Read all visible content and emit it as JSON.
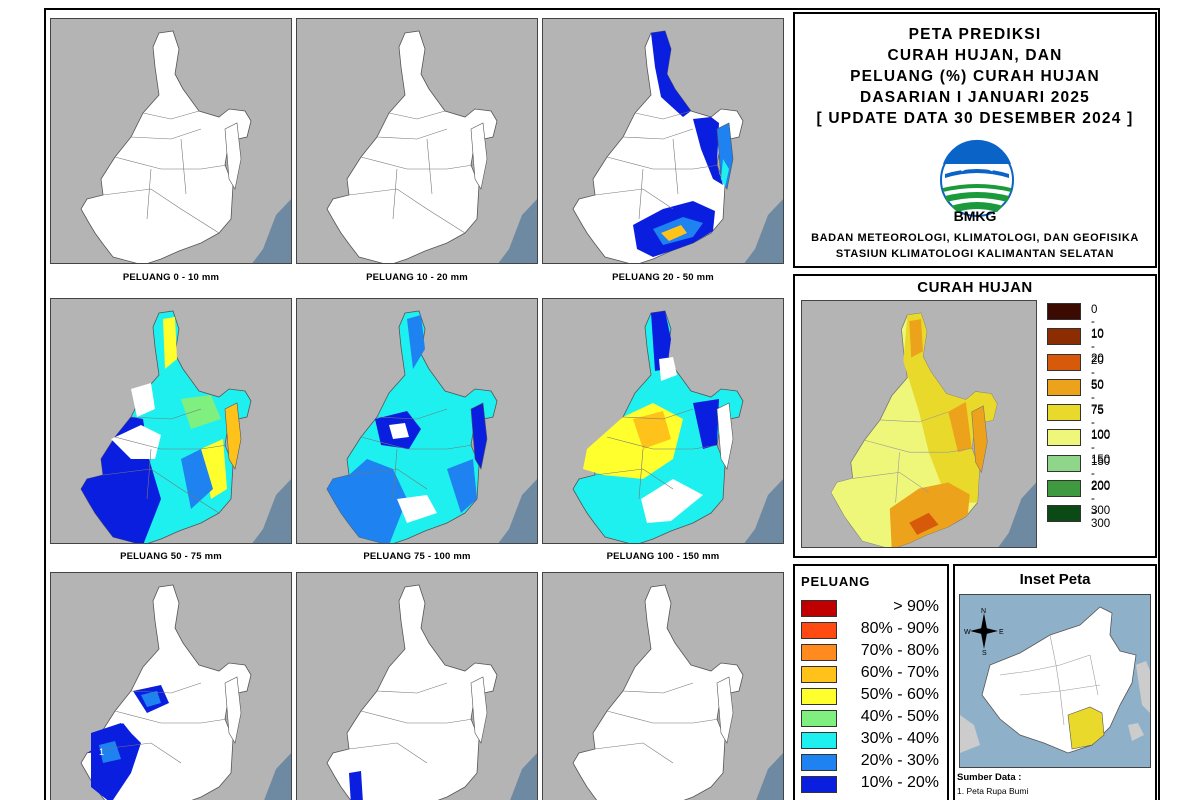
{
  "title": {
    "lines": [
      "PETA PREDIKSI",
      "CURAH HUJAN, DAN",
      "PELUANG (%) CURAH HUJAN",
      "DASARIAN I JANUARI 2025",
      "[ UPDATE DATA 30 DESEMBER 2024 ]"
    ],
    "logo_text": "BMKG",
    "agency_lines": [
      "BADAN METEOROLOGI, KLIMATOLOGI, DAN GEOFISIKA",
      "STASIUN KLIMATOLOGI KALIMANTAN SELATAN"
    ]
  },
  "panels": {
    "p1": "PELUANG 0 - 10 mm",
    "p2": "PELUANG 10 - 20 mm",
    "p3": "PELUANG 20 - 50 mm",
    "p4": "PELUANG 50 - 75 mm",
    "p5": "PELUANG 75 - 100 mm",
    "p6": "PELUANG 100 - 150 mm"
  },
  "curah_hujan": {
    "title": "CURAH HUJAN",
    "legend": [
      {
        "label": "0 - 10",
        "color": "#3b0a00"
      },
      {
        "label": "10 - 20",
        "color": "#8b2d00"
      },
      {
        "label": "20 - 50",
        "color": "#d75a0a"
      },
      {
        "label": "50 - 75",
        "color": "#eca21a"
      },
      {
        "label": "75 - 100",
        "color": "#e9d92a"
      },
      {
        "label": "100 - 150",
        "color": "#eef77a"
      },
      {
        "label": "150 - 200",
        "color": "#8fd68a"
      },
      {
        "label": "200 - 300",
        "color": "#3f9a3f"
      },
      {
        "label": "> 300",
        "color": "#0b4a14"
      }
    ]
  },
  "peluang": {
    "title": "PELUANG",
    "legend": [
      {
        "label": "> 90%",
        "color": "#c00000"
      },
      {
        "label": "80% - 90%",
        "color": "#ff4b12"
      },
      {
        "label": "70% - 80%",
        "color": "#ff8a1e"
      },
      {
        "label": "60% - 70%",
        "color": "#ffc21a"
      },
      {
        "label": "50% - 60%",
        "color": "#ffff2e"
      },
      {
        "label": "40% - 50%",
        "color": "#7fef7f"
      },
      {
        "label": "30% - 40%",
        "color": "#1ef0ef"
      },
      {
        "label": "20% - 30%",
        "color": "#1e82f0"
      },
      {
        "label": "10% - 20%",
        "color": "#0a1ee0"
      }
    ]
  },
  "inset": {
    "title": "Inset Peta",
    "compass": {
      "n": "N",
      "s": "S",
      "e": "E",
      "w": "W"
    },
    "source_title": "Sumber Data :",
    "source_item": "1. Peta Rupa Bumi"
  },
  "colors": {
    "sea": "#6e8aa2",
    "neighbor_land": "#b4b4b4",
    "province": "#ffffff"
  }
}
